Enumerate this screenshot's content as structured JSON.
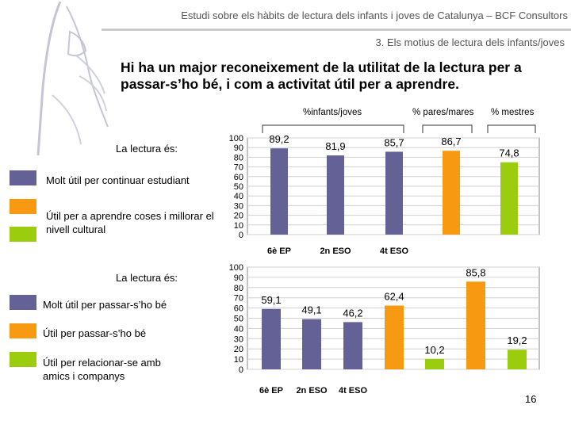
{
  "header": {
    "title": "Estudi sobre els hàbits de lectura dels infants i joves de Catalunya – BCF Consultors",
    "section": "3. Els motius de lectura dels infants/joves"
  },
  "headline": "Hi ha un major reconeixement de la utilitat de la lectura per a passar-s’ho bé, i com a activitat útil per a aprendre.",
  "column_headers": {
    "kids": "%infants/joves",
    "parents": "% pares/mares",
    "teachers": "% mestres"
  },
  "page_number": "16",
  "colors": {
    "purple": "#646196",
    "orange": "#f79a12",
    "green": "#9ccc0e",
    "grid": "#d0d0d0"
  },
  "panels": [
    {
      "heading": "La lectura és:",
      "legend": [
        {
          "label": "Molt útil per continuar estudiant",
          "color": "#646196"
        },
        {
          "label": "Útil per a aprendre coses i millorar el nivell cultural",
          "color": "#f79a12"
        },
        {
          "label": "",
          "color": "#9ccc0e"
        }
      ]
    },
    {
      "heading": "La lectura és:",
      "legend": [
        {
          "label": "Molt útil per passar-s’ho bé",
          "color": "#646196"
        },
        {
          "label": "Útil per passar-s’ho bé",
          "color": "#f79a12"
        },
        {
          "label": "Útil per relacionar-se amb amics i companys",
          "color": "#9ccc0e"
        }
      ]
    }
  ],
  "chart_data": [
    {
      "type": "bar",
      "categories": [
        "6è EP",
        "2n ESO",
        "4t ESO"
      ],
      "ylim": [
        0,
        100
      ],
      "yticks": [
        0,
        10,
        20,
        30,
        40,
        50,
        60,
        70,
        80,
        90,
        100
      ],
      "bars": [
        {
          "group": "kids",
          "label": "89,2",
          "value": 89.2,
          "color": "#646196"
        },
        {
          "group": "kids",
          "label": "81,9",
          "value": 81.9,
          "color": "#646196"
        },
        {
          "group": "kids",
          "label": "85,7",
          "value": 85.7,
          "color": "#646196"
        },
        {
          "group": "parents",
          "label": "86,7",
          "value": 86.7,
          "color": "#f79a12"
        },
        {
          "group": "teachers",
          "label": "74,8",
          "value": 74.8,
          "color": "#9ccc0e"
        }
      ]
    },
    {
      "type": "bar",
      "categories": [
        "6è EP",
        "2n ESO",
        "4t ESO"
      ],
      "ylim": [
        0,
        100
      ],
      "yticks": [
        0,
        10,
        20,
        30,
        40,
        50,
        60,
        70,
        80,
        90,
        100
      ],
      "bars": [
        {
          "group": "kids",
          "label": "59,1",
          "value": 59.1,
          "color": "#646196"
        },
        {
          "group": "kids",
          "label": "49,1",
          "value": 49.1,
          "color": "#646196"
        },
        {
          "group": "kids",
          "label": "46,2",
          "value": 46.2,
          "color": "#646196"
        },
        {
          "group": "parents",
          "label": "62,4",
          "value": 62.4,
          "color": "#f79a12"
        },
        {
          "group": "parents",
          "label": "85,8",
          "value": 85.8,
          "color": "#f79a12"
        },
        {
          "group": "teachers",
          "label": "10,2",
          "value": 10.2,
          "color": "#9ccc0e"
        },
        {
          "group": "teachers",
          "label": "19,2",
          "value": 19.2,
          "color": "#9ccc0e"
        }
      ]
    }
  ]
}
